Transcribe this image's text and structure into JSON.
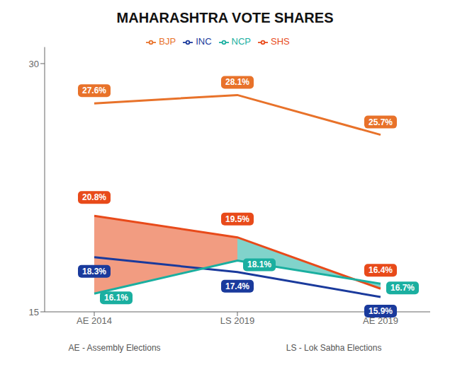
{
  "chart_data": {
    "type": "line",
    "title": "MAHARASHTRA VOTE SHARES",
    "categories": [
      "AE 2014",
      "LS 2019",
      "AE 2019"
    ],
    "series": [
      {
        "name": "BJP",
        "color": "#E8722A",
        "values": [
          27.6,
          28.1,
          25.7
        ],
        "value_labels": [
          "27.6%",
          "28.1%",
          "25.7%"
        ]
      },
      {
        "name": "SHS",
        "color": "#E84A1A",
        "values": [
          20.8,
          19.5,
          16.4
        ],
        "value_labels": [
          "20.8%",
          "19.5%",
          "16.4%"
        ]
      },
      {
        "name": "INC",
        "color": "#1A3A9C",
        "values": [
          18.3,
          17.4,
          15.9
        ],
        "value_labels": [
          "18.3%",
          "17.4%",
          "15.9%"
        ]
      },
      {
        "name": "NCP",
        "color": "#1AAFA0",
        "values": [
          16.1,
          18.1,
          16.7
        ],
        "value_labels": [
          "16.1%",
          "18.1%",
          "16.7%"
        ]
      }
    ],
    "ylim": [
      15,
      31
    ],
    "yticks": [
      15,
      30
    ],
    "grid": false,
    "legend": "top",
    "data_labels": true,
    "annotations": [
      "AE - Assembly Elections",
      "LS - Lok Sabha Elections"
    ]
  }
}
